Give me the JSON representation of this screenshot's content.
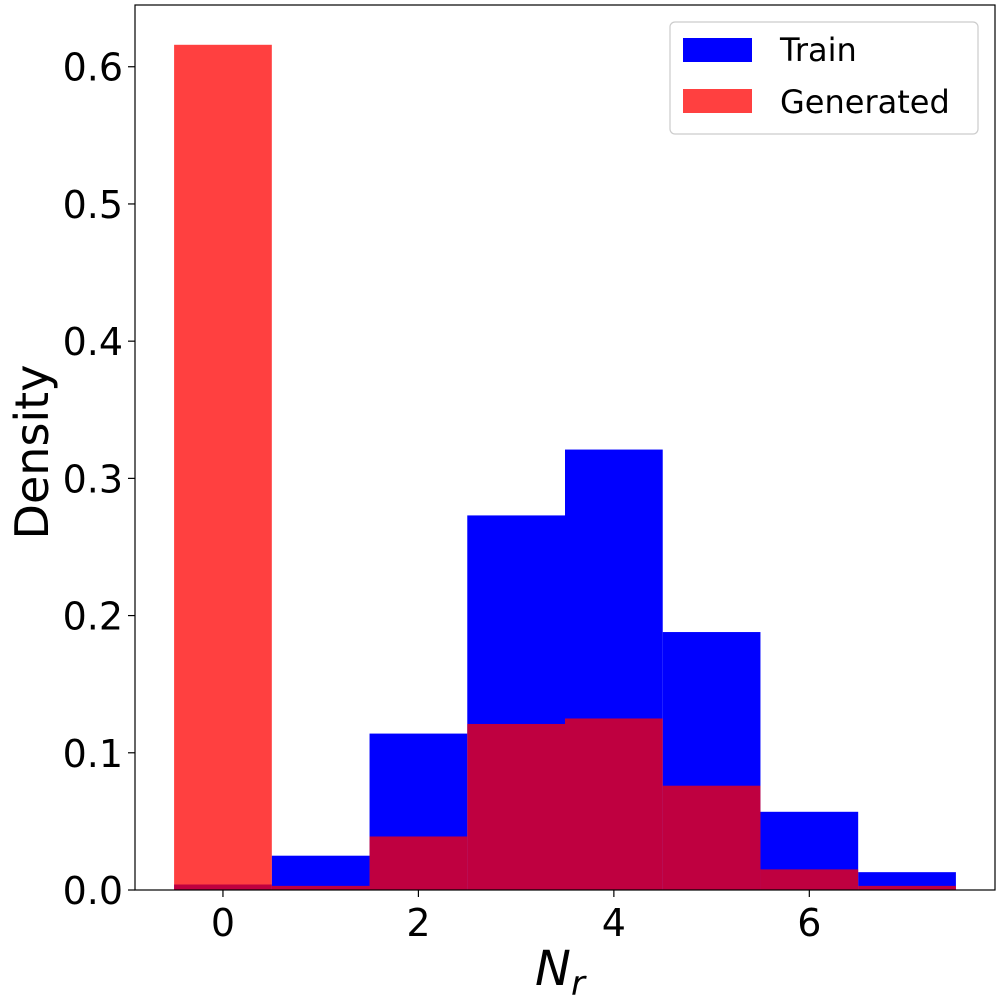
{
  "chart_data": {
    "type": "bar",
    "title": "",
    "xlabel": "N",
    "xlabel_subscript": "r",
    "ylabel": "Density",
    "xlim": [
      -0.9,
      7.9
    ],
    "ylim": [
      0,
      0.645
    ],
    "xticks": [
      0,
      2,
      4,
      6
    ],
    "yticks": [
      0.0,
      0.1,
      0.2,
      0.3,
      0.4,
      0.5,
      0.6
    ],
    "ytick_labels": [
      "0.0",
      "0.1",
      "0.2",
      "0.3",
      "0.4",
      "0.5",
      "0.6"
    ],
    "bin_width": 1,
    "categories": [
      0,
      1,
      2,
      3,
      4,
      5,
      6,
      7
    ],
    "series": [
      {
        "name": "Train",
        "color": "#0000ff",
        "opacity": 1.0,
        "values": [
          0.004,
          0.025,
          0.114,
          0.273,
          0.321,
          0.188,
          0.057,
          0.013
        ]
      },
      {
        "name": "Generated",
        "color": "#ff0000",
        "opacity": 0.75,
        "values": [
          0.616,
          0.003,
          0.039,
          0.121,
          0.125,
          0.076,
          0.015,
          0.003
        ]
      }
    ],
    "grid": false,
    "legend_position": "top-right"
  }
}
